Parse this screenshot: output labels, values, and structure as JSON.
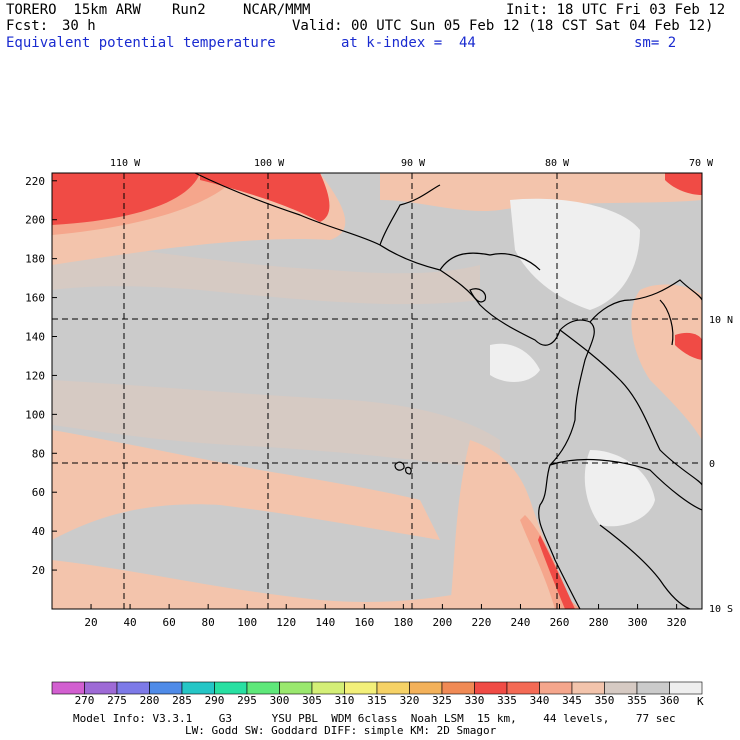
{
  "header": {
    "model": "TORERO  15km ARW",
    "run": "Run2",
    "org": "NCAR/MMM",
    "init": "Init: 18 UTC Fri 03 Feb 12",
    "fcst_label": "Fcst:",
    "fcst_value": "30 h",
    "valid": "Valid: 00 UTC Sun 05 Feb 12 (18 CST Sat 04 Feb 12)",
    "field": "Equivalent potential temperature",
    "level": "at k-index =  44",
    "smooth": "sm= 2"
  },
  "map": {
    "top_lon_labels": [
      "110 W",
      "100 W",
      "90 W",
      "80 W",
      "70 W"
    ],
    "right_lat_labels": [
      "10 N",
      "0",
      "10 S"
    ],
    "x_ticks": [
      "20",
      "40",
      "60",
      "80",
      "100",
      "120",
      "140",
      "160",
      "180",
      "200",
      "220",
      "240",
      "260",
      "280",
      "300",
      "320"
    ],
    "y_ticks": [
      "20",
      "40",
      "60",
      "80",
      "100",
      "120",
      "140",
      "160",
      "180",
      "200",
      "220"
    ],
    "colors": {
      "hot_red": "#f04b45",
      "red": "#f46a55",
      "salmon": "#f5a68c",
      "peach": "#f3c4ac",
      "tan": "#d6cac3",
      "grey": "#cbcbcb",
      "light": "#efefef"
    }
  },
  "colorbar": {
    "labels": [
      "270",
      "275",
      "280",
      "285",
      "290",
      "295",
      "300",
      "305",
      "310",
      "315",
      "320",
      "325",
      "330",
      "335",
      "340",
      "345",
      "350",
      "355",
      "360"
    ],
    "unit": "K",
    "colors": [
      "#d25fd0",
      "#9e6ad6",
      "#7d7ae8",
      "#4f8be8",
      "#25c6c6",
      "#28e0a2",
      "#5ee87a",
      "#9ae86e",
      "#d4ef77",
      "#f3f07a",
      "#f6d266",
      "#f3b15a",
      "#f08a55",
      "#f04b45",
      "#f46a55",
      "#f5a68c",
      "#f3c4ac",
      "#d6cac3",
      "#cbcbcb",
      "#efefef"
    ]
  },
  "footer": {
    "line1": "Model Info: V3.3.1    G3      YSU PBL  WDM 6class  Noah LSM  15 km,    44 levels,    77 sec",
    "line2": "LW: Godd SW: Goddard DIFF: simple KM: 2D Smagor"
  }
}
